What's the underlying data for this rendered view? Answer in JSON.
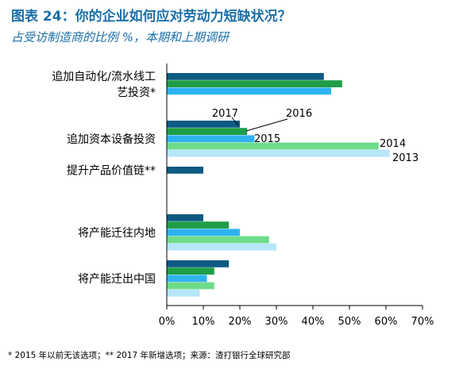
{
  "header": {
    "title": "图表 24：你的企业如何应对劳动力短缺状况？",
    "subtitle": "占受访制造商的比例 %，本期和上期调研"
  },
  "footnote": "* 2015 年以前无该选项；** 2017 年新增选项；来源：渣打银行全球研究部",
  "colors": {
    "2017": "#0d5a82",
    "2016": "#1f9e48",
    "2015": "#2eb3f0",
    "2014": "#6edc8a",
    "2013": "#b6e6fa",
    "axis": "#000000"
  },
  "chart_data": {
    "type": "bar",
    "orientation": "horizontal",
    "title": "图表 24：你的企业如何应对劳动力短缺状况？",
    "subtitle": "占受访制造商的比例 %，本期和上期调研",
    "categories": [
      "追加自动化/流水线工艺投资*",
      "追加资本设备投资",
      "提升产品价值链**",
      "将产能迁往内地",
      "将产能迁出中国"
    ],
    "category_label_lines": [
      [
        "追加自动化/流水线工",
        "艺投资*"
      ],
      [
        "追加资本设备投资"
      ],
      [
        "提升产品价值链**"
      ],
      [
        "将产能迁往内地"
      ],
      [
        "将产能迁出中国"
      ]
    ],
    "series": [
      {
        "name": "2017",
        "values": [
          43,
          20,
          10,
          10,
          17
        ]
      },
      {
        "name": "2016",
        "values": [
          48,
          22,
          null,
          17,
          13
        ]
      },
      {
        "name": "2015",
        "values": [
          45,
          24,
          null,
          20,
          11
        ]
      },
      {
        "name": "2014",
        "values": [
          null,
          58,
          null,
          28,
          13
        ]
      },
      {
        "name": "2013",
        "values": [
          null,
          61,
          null,
          30,
          9
        ]
      }
    ],
    "xlim": [
      0,
      70
    ],
    "xticks": [
      "0%",
      "10%",
      "20%",
      "30%",
      "40%",
      "50%",
      "60%",
      "70%"
    ],
    "grid": false,
    "legend": "inline leader labels on second category"
  }
}
